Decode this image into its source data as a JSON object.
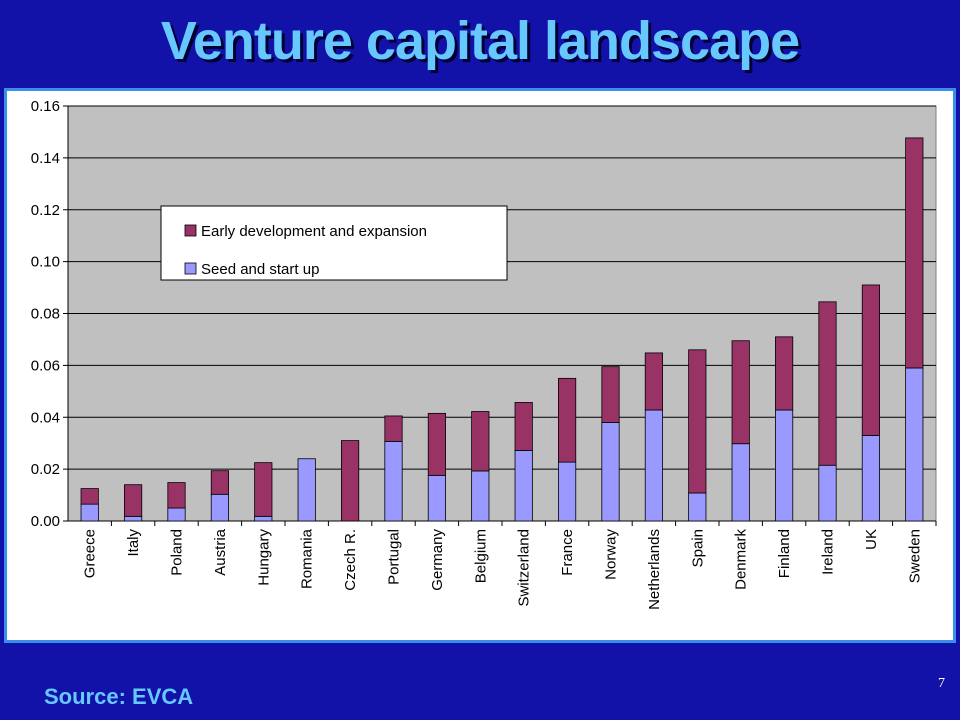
{
  "slide": {
    "title": "Venture capital landscape",
    "source": "Source: EVCA",
    "page_number": "7"
  },
  "colors": {
    "background": "#1212a8",
    "title": "#66c8ff",
    "plot_area": "#c0c0c0",
    "early": "#993366",
    "seed": "#9999ff"
  },
  "chart_data": {
    "type": "bar",
    "stacked": true,
    "categories": [
      "Greece",
      "Italy",
      "Poland",
      "Austria",
      "Hungary",
      "Romania",
      "Czech R.",
      "Portugal",
      "Germany",
      "Belgium",
      "Switzerland",
      "France",
      "Norway",
      "Netherlands",
      "Spain",
      "Denmark",
      "Finland",
      "Ireland",
      "UK",
      "Sweden"
    ],
    "series": [
      {
        "name": "Seed and start up",
        "color": "#9999ff",
        "values": [
          0.0065,
          0.0018,
          0.005,
          0.0103,
          0.0018,
          0.024,
          0.0,
          0.0307,
          0.0176,
          0.0193,
          0.0272,
          0.0227,
          0.038,
          0.0428,
          0.0108,
          0.0298,
          0.0428,
          0.0215,
          0.033,
          0.059
        ]
      },
      {
        "name": "Early development and expansion",
        "color": "#993366",
        "values": [
          0.006,
          0.0122,
          0.0098,
          0.0091,
          0.0207,
          0.0,
          0.031,
          0.0098,
          0.0239,
          0.0229,
          0.0185,
          0.0323,
          0.0215,
          0.022,
          0.0552,
          0.0397,
          0.0282,
          0.063,
          0.058,
          0.0887
        ]
      }
    ],
    "ylim": [
      0,
      0.16
    ],
    "yticks": [
      "0.00",
      "0.02",
      "0.04",
      "0.06",
      "0.08",
      "0.10",
      "0.12",
      "0.14",
      "0.16"
    ],
    "legend": {
      "placement": "top-left",
      "entries": [
        "Early development and expansion",
        "Seed and start up"
      ]
    },
    "grid": true
  }
}
